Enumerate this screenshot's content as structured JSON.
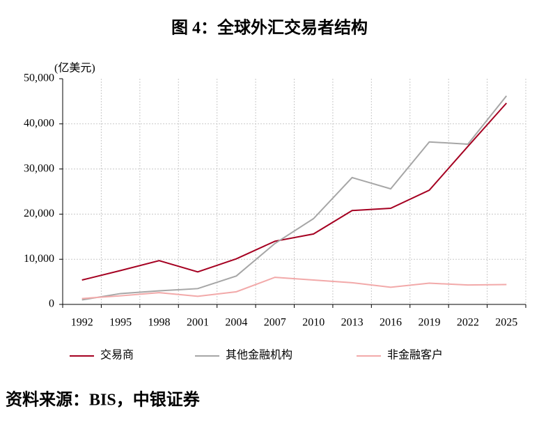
{
  "chart_data": {
    "type": "line",
    "title": "图 4：全球外汇交易者结构",
    "y_label": "(亿美元)",
    "source": "资料来源：BIS，中银证券",
    "categories": [
      "1992",
      "1995",
      "1998",
      "2001",
      "2004",
      "2007",
      "2010",
      "2013",
      "2016",
      "2019",
      "2022",
      "2025"
    ],
    "series": [
      {
        "name": "交易商",
        "color": "#a50021",
        "values": [
          5400,
          7500,
          9700,
          7200,
          10100,
          14000,
          15600,
          20800,
          21300,
          25300,
          35000,
          44600
        ]
      },
      {
        "name": "其他金融机构",
        "color": "#a6a6a6",
        "values": [
          1000,
          2400,
          3000,
          3500,
          6300,
          13500,
          19000,
          28100,
          25600,
          36000,
          35500,
          46200
        ]
      },
      {
        "name": "非金融客户",
        "color": "#f2a9a9",
        "values": [
          1300,
          1900,
          2600,
          1800,
          2800,
          6000,
          5400,
          4800,
          3800,
          4700,
          4300,
          4400
        ]
      }
    ],
    "ylim": [
      0,
      50000
    ],
    "yticks": [
      0,
      {
        "value": 10000,
        "label": "10,000"
      },
      {
        "value": 20000,
        "label": "20,000"
      },
      {
        "value": 30000,
        "label": "30,000"
      },
      {
        "value": 40000,
        "label": "40,000"
      },
      {
        "value": 50000,
        "label": "50,000"
      }
    ],
    "grid": true
  }
}
